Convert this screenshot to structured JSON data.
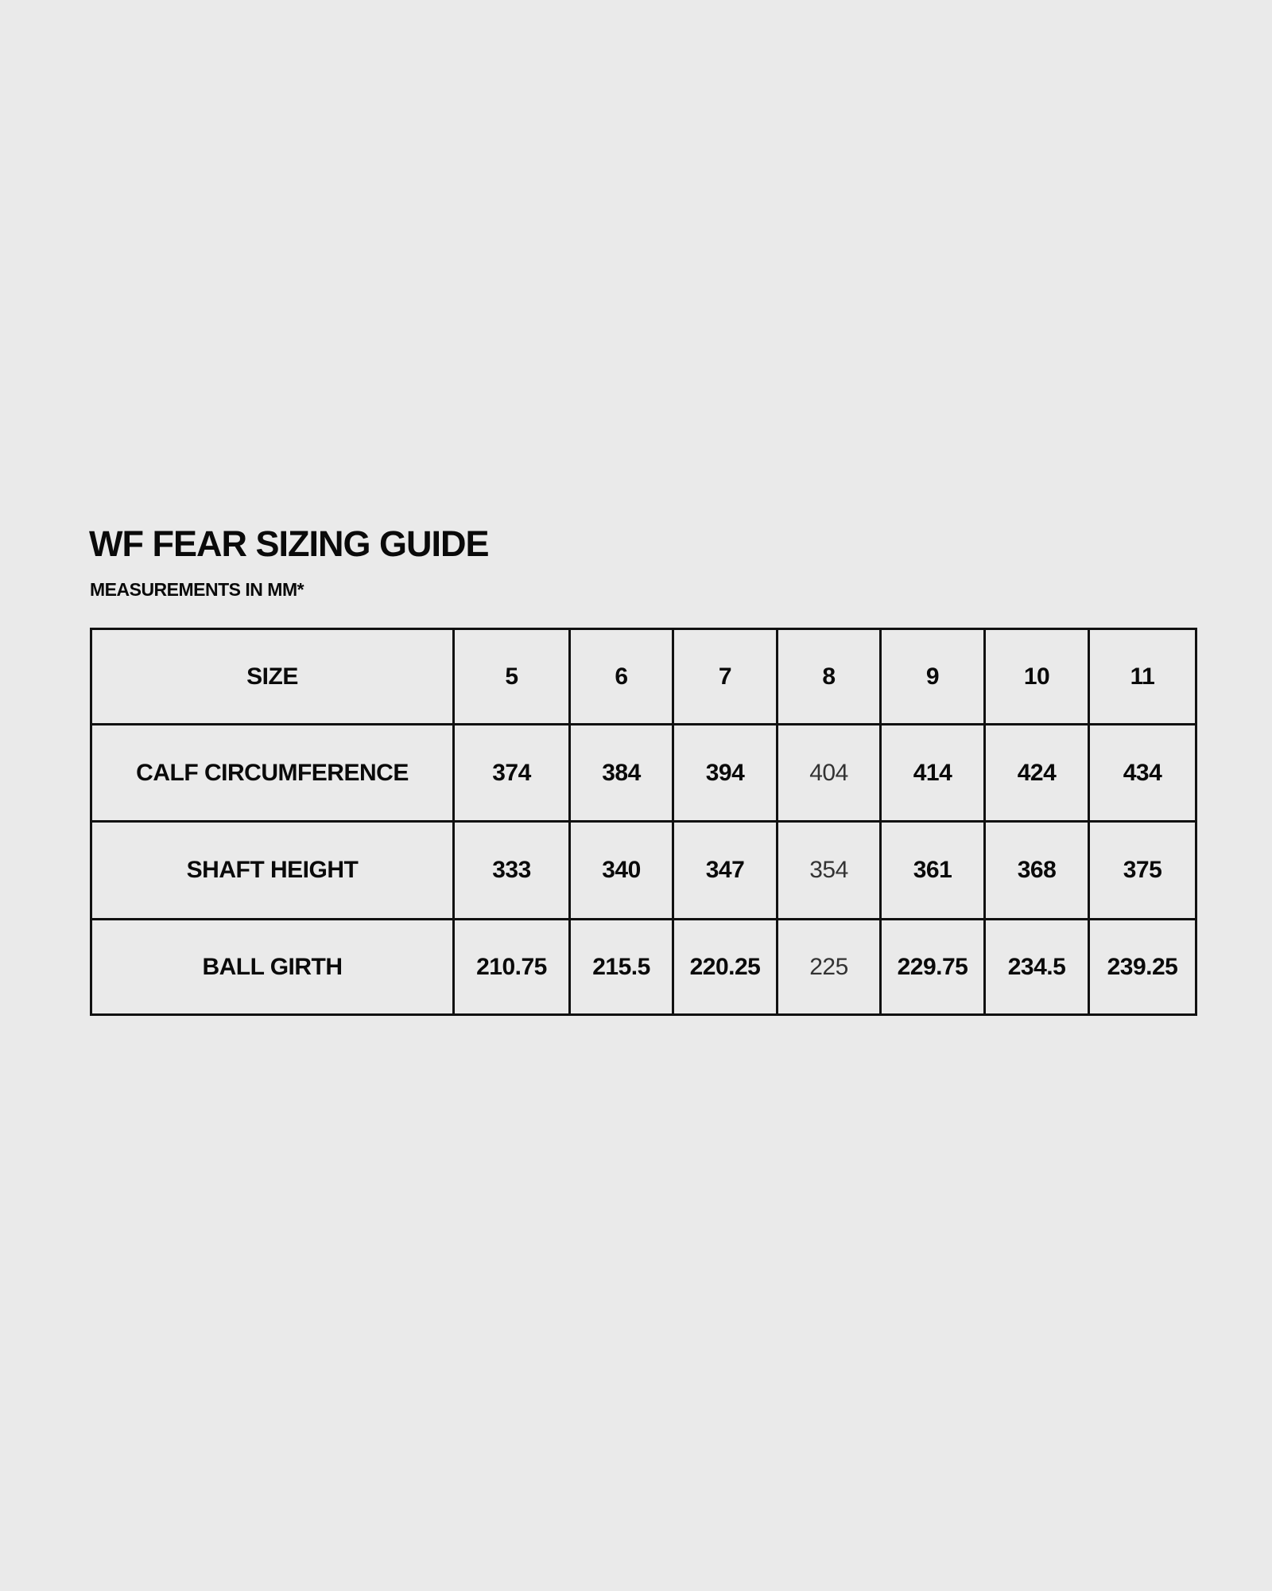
{
  "title": "WF FEAR SIZING GUIDE",
  "subtitle": "MEASUREMENTS IN MM*",
  "colors": {
    "background": "#eaeaea",
    "text": "#0a0a0a",
    "border": "#111111",
    "muted_column_text": "#333333"
  },
  "table": {
    "rows": [
      {
        "label": "SIZE",
        "values": [
          "5",
          "6",
          "7",
          "8",
          "9",
          "10",
          "11"
        ]
      },
      {
        "label": "CALF CIRCUMFERENCE",
        "values": [
          "374",
          "384",
          "394",
          "404",
          "414",
          "424",
          "434"
        ]
      },
      {
        "label": "SHAFT HEIGHT",
        "values": [
          "333",
          "340",
          "347",
          "354",
          "361",
          "368",
          "375"
        ]
      },
      {
        "label": "BALL GIRTH",
        "values": [
          "210.75",
          "215.5",
          "220.25",
          "225",
          "229.75",
          "234.5",
          "239.25"
        ]
      }
    ]
  }
}
